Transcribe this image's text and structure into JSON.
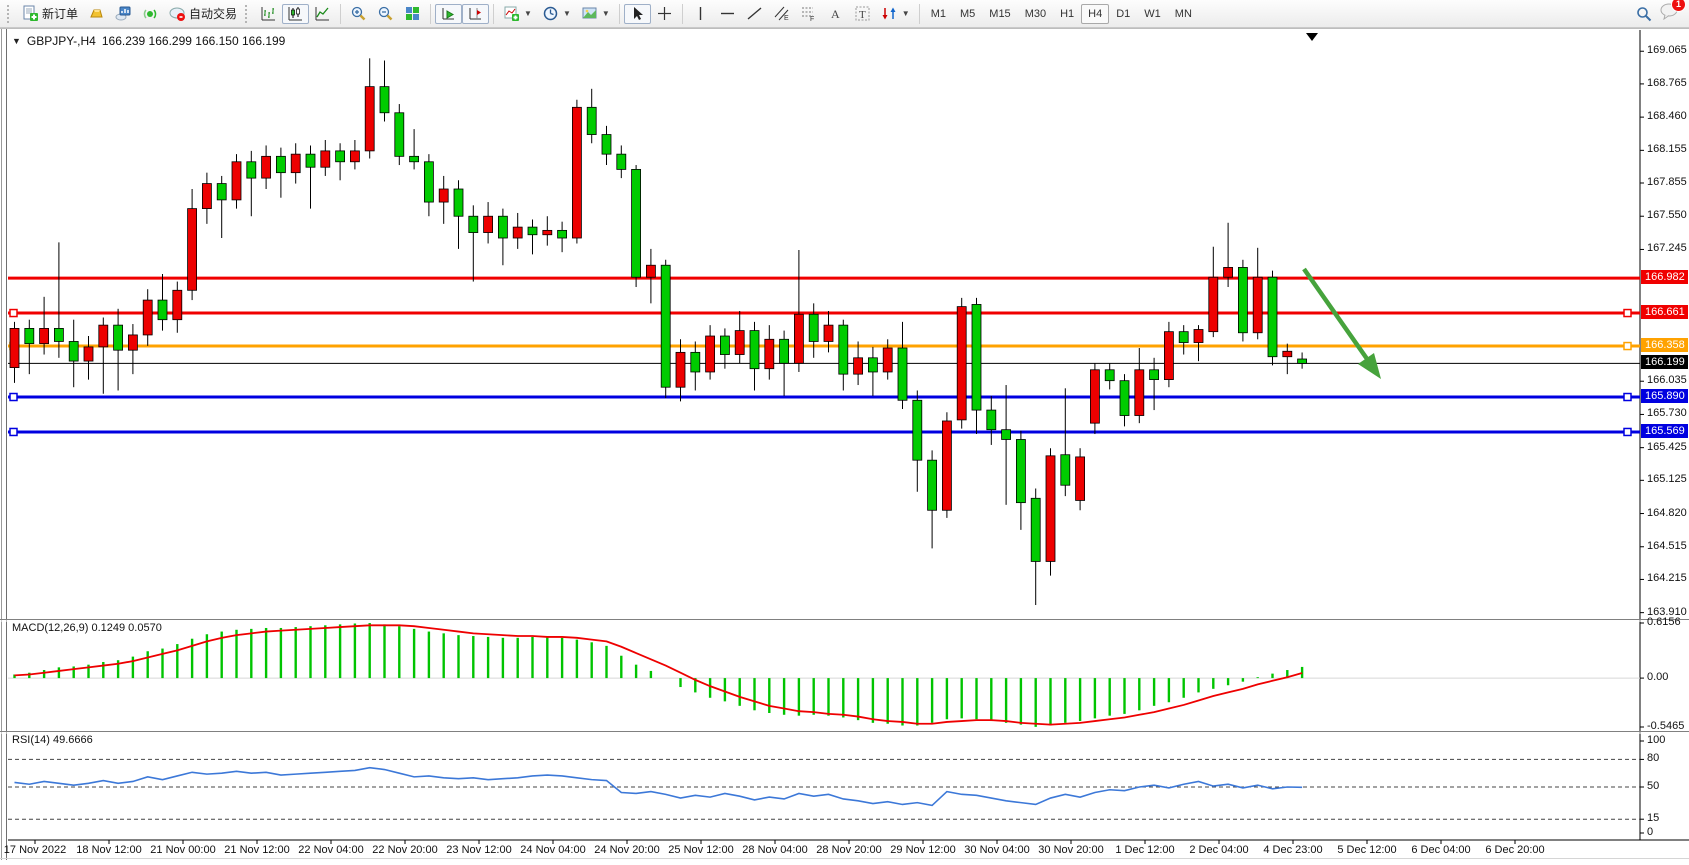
{
  "toolbar": {
    "new_order_label": "新订单",
    "auto_trading_label": "自动交易",
    "timeframes": [
      "M1",
      "M5",
      "M15",
      "M30",
      "H1",
      "H4",
      "D1",
      "W1",
      "MN"
    ],
    "active_timeframe": "H4",
    "badge_count": "1"
  },
  "title": {
    "symbol_period": "GBPJPY-,H4",
    "ohlc_text": "166.239 166.299 166.150 166.199"
  },
  "chart_data": {
    "type": "candlestick",
    "symbol": "GBPJPY-",
    "period": "H4",
    "current_bar": {
      "open": "166.239",
      "high": "166.299",
      "low": "166.150",
      "close": "166.199"
    },
    "ylim": [
      163.87,
      169.26
    ],
    "bull_color": "#ed0000",
    "bear_color": "#00cc00",
    "price_ticks": [
      169.065,
      168.765,
      168.46,
      168.155,
      167.855,
      167.55,
      167.245,
      166.035,
      165.73,
      165.425,
      165.125,
      164.82,
      164.515,
      164.215,
      163.91
    ],
    "time_labels": [
      "17 Nov 2022",
      "18 Nov 12:00",
      "21 Nov 00:00",
      "21 Nov 12:00",
      "22 Nov 04:00",
      "22 Nov 20:00",
      "23 Nov 12:00",
      "24 Nov 04:00",
      "24 Nov 20:00",
      "25 Nov 12:00",
      "28 Nov 04:00",
      "28 Nov 20:00",
      "29 Nov 12:00",
      "30 Nov 04:00",
      "30 Nov 20:00",
      "1 Dec 12:00",
      "2 Dec 04:00",
      "4 Dec 23:00",
      "5 Dec 12:00",
      "6 Dec 04:00",
      "6 Dec 20:00"
    ],
    "candles": [
      [
        166.16,
        166.58,
        166.02,
        166.52
      ],
      [
        166.52,
        166.6,
        166.1,
        166.38
      ],
      [
        166.38,
        166.81,
        166.28,
        166.52
      ],
      [
        166.52,
        167.31,
        166.25,
        166.4
      ],
      [
        166.4,
        166.6,
        165.98,
        166.22
      ],
      [
        166.22,
        166.45,
        166.05,
        166.35
      ],
      [
        166.35,
        166.62,
        165.92,
        166.55
      ],
      [
        166.55,
        166.7,
        165.95,
        166.32
      ],
      [
        166.32,
        166.56,
        166.1,
        166.46
      ],
      [
        166.46,
        166.88,
        166.36,
        166.78
      ],
      [
        166.78,
        167.02,
        166.5,
        166.6
      ],
      [
        166.6,
        166.95,
        166.48,
        166.87
      ],
      [
        166.87,
        167.8,
        166.78,
        167.62
      ],
      [
        167.62,
        167.95,
        167.48,
        167.85
      ],
      [
        167.85,
        167.92,
        167.35,
        167.7
      ],
      [
        167.7,
        168.12,
        167.62,
        168.05
      ],
      [
        168.05,
        168.15,
        167.55,
        167.9
      ],
      [
        167.9,
        168.2,
        167.8,
        168.1
      ],
      [
        168.1,
        168.18,
        167.72,
        167.95
      ],
      [
        167.95,
        168.22,
        167.85,
        168.12
      ],
      [
        168.12,
        168.2,
        167.62,
        168.0
      ],
      [
        168.0,
        168.25,
        167.92,
        168.15
      ],
      [
        168.15,
        168.22,
        167.88,
        168.05
      ],
      [
        168.05,
        168.25,
        167.98,
        168.15
      ],
      [
        168.15,
        169.0,
        168.08,
        168.74
      ],
      [
        168.74,
        168.98,
        168.42,
        168.5
      ],
      [
        168.5,
        168.58,
        168.02,
        168.1
      ],
      [
        168.1,
        168.35,
        167.98,
        168.05
      ],
      [
        168.05,
        168.12,
        167.55,
        167.68
      ],
      [
        167.68,
        167.92,
        167.48,
        167.8
      ],
      [
        167.8,
        167.88,
        167.25,
        167.55
      ],
      [
        167.55,
        167.65,
        166.95,
        167.4
      ],
      [
        167.4,
        167.68,
        167.3,
        167.55
      ],
      [
        167.55,
        167.62,
        167.1,
        167.35
      ],
      [
        167.35,
        167.58,
        167.25,
        167.45
      ],
      [
        167.45,
        167.52,
        167.2,
        167.38
      ],
      [
        167.38,
        167.55,
        167.28,
        167.42
      ],
      [
        167.42,
        167.5,
        167.22,
        167.35
      ],
      [
        167.35,
        168.62,
        167.3,
        168.55
      ],
      [
        168.55,
        168.72,
        168.22,
        168.3
      ],
      [
        168.3,
        168.38,
        168.02,
        168.12
      ],
      [
        168.12,
        168.2,
        167.9,
        167.98
      ],
      [
        167.98,
        168.02,
        166.9,
        166.99
      ],
      [
        166.99,
        167.25,
        166.75,
        167.1
      ],
      [
        167.1,
        167.15,
        165.88,
        165.98
      ],
      [
        165.98,
        166.42,
        165.85,
        166.3
      ],
      [
        166.3,
        166.4,
        165.95,
        166.12
      ],
      [
        166.12,
        166.55,
        166.05,
        166.45
      ],
      [
        166.45,
        166.52,
        166.15,
        166.28
      ],
      [
        166.28,
        166.68,
        166.2,
        166.5
      ],
      [
        166.5,
        166.58,
        165.95,
        166.15
      ],
      [
        166.15,
        166.55,
        166.05,
        166.42
      ],
      [
        166.42,
        166.5,
        165.9,
        166.2
      ],
      [
        166.2,
        167.24,
        166.12,
        166.65
      ],
      [
        166.65,
        166.75,
        166.25,
        166.4
      ],
      [
        166.4,
        166.68,
        166.3,
        166.55
      ],
      [
        166.55,
        166.6,
        165.95,
        166.1
      ],
      [
        166.1,
        166.4,
        166.0,
        166.25
      ],
      [
        166.25,
        166.35,
        165.9,
        166.12
      ],
      [
        166.12,
        166.42,
        166.05,
        166.34
      ],
      [
        166.34,
        166.58,
        165.78,
        165.86
      ],
      [
        165.86,
        165.95,
        165.02,
        165.31
      ],
      [
        165.31,
        165.4,
        164.5,
        164.85
      ],
      [
        164.85,
        165.75,
        164.78,
        165.67
      ],
      [
        165.68,
        166.8,
        165.6,
        166.72
      ],
      [
        166.74,
        166.8,
        165.55,
        165.77
      ],
      [
        165.77,
        165.9,
        165.45,
        165.59
      ],
      [
        165.59,
        166.0,
        164.9,
        165.5
      ],
      [
        165.5,
        165.58,
        164.67,
        164.92
      ],
      [
        164.96,
        165.05,
        163.98,
        164.38
      ],
      [
        164.38,
        165.42,
        164.25,
        165.35
      ],
      [
        165.36,
        165.97,
        164.98,
        165.08
      ],
      [
        164.94,
        165.42,
        164.85,
        165.34
      ],
      [
        165.65,
        166.2,
        165.55,
        166.14
      ],
      [
        166.14,
        166.2,
        165.96,
        166.04
      ],
      [
        166.04,
        166.1,
        165.62,
        165.72
      ],
      [
        165.72,
        166.34,
        165.65,
        166.14
      ],
      [
        166.14,
        166.25,
        165.77,
        166.05
      ],
      [
        166.05,
        166.58,
        165.98,
        166.49
      ],
      [
        166.49,
        166.55,
        166.28,
        166.39
      ],
      [
        166.39,
        166.55,
        166.22,
        166.51
      ],
      [
        166.49,
        167.27,
        166.44,
        166.99
      ],
      [
        166.99,
        167.49,
        166.9,
        167.08
      ],
      [
        167.08,
        167.15,
        166.4,
        166.48
      ],
      [
        166.48,
        167.26,
        166.42,
        166.99
      ],
      [
        166.99,
        167.05,
        166.18,
        166.26
      ],
      [
        166.26,
        166.38,
        166.1,
        166.31
      ],
      [
        166.239,
        166.299,
        166.15,
        166.199
      ]
    ],
    "levels": [
      {
        "price": 166.982,
        "label": "166.982",
        "color": "#f00000",
        "width": 3,
        "handles": false
      },
      {
        "price": 166.661,
        "label": "166.661",
        "color": "#f00000",
        "width": 3,
        "handles": true
      },
      {
        "price": 166.358,
        "label": "166.358",
        "color": "#ffa200",
        "width": 3,
        "handles": true
      },
      {
        "price": 166.199,
        "label": "166.199",
        "color": "#000000",
        "width": 1,
        "handles": false
      },
      {
        "price": 165.89,
        "label": "165.890",
        "color": "#0000e0",
        "width": 3,
        "handles": true
      },
      {
        "price": 165.569,
        "label": "165.569",
        "color": "#0000e0",
        "width": 3,
        "handles": true
      }
    ],
    "arrow": {
      "color": "#46a33c"
    },
    "macd": {
      "label": "MACD(12,26,9)",
      "value_main": "0.1249",
      "value_signal": "0.0570",
      "ticks": [
        "0.6156",
        "0.00",
        "-0.5465"
      ],
      "range": [
        -0.5465,
        0.6156
      ],
      "hist_color": "#00c400",
      "signal_color": "#ee0000",
      "histogram": [
        0.04,
        0.06,
        0.09,
        0.12,
        0.13,
        0.15,
        0.18,
        0.2,
        0.24,
        0.3,
        0.33,
        0.38,
        0.44,
        0.49,
        0.52,
        0.54,
        0.55,
        0.56,
        0.56,
        0.57,
        0.58,
        0.59,
        0.6,
        0.61,
        0.615,
        0.6,
        0.58,
        0.55,
        0.52,
        0.5,
        0.48,
        0.47,
        0.46,
        0.45,
        0.45,
        0.46,
        0.46,
        0.45,
        0.43,
        0.4,
        0.36,
        0.25,
        0.15,
        0.08,
        0.0,
        -0.1,
        -0.16,
        -0.22,
        -0.26,
        -0.31,
        -0.36,
        -0.39,
        -0.41,
        -0.42,
        -0.41,
        -0.42,
        -0.44,
        -0.47,
        -0.5,
        -0.51,
        -0.53,
        -0.53,
        -0.5,
        -0.46,
        -0.45,
        -0.46,
        -0.48,
        -0.5,
        -0.52,
        -0.545,
        -0.53,
        -0.5,
        -0.48,
        -0.45,
        -0.42,
        -0.4,
        -0.36,
        -0.31,
        -0.27,
        -0.22,
        -0.16,
        -0.12,
        -0.08,
        -0.04,
        0.01,
        0.05,
        0.09,
        0.1249
      ],
      "signal": [
        0.03,
        0.04,
        0.06,
        0.08,
        0.1,
        0.12,
        0.14,
        0.16,
        0.19,
        0.23,
        0.27,
        0.31,
        0.36,
        0.41,
        0.45,
        0.48,
        0.5,
        0.52,
        0.53,
        0.54,
        0.55,
        0.56,
        0.57,
        0.58,
        0.59,
        0.59,
        0.59,
        0.58,
        0.56,
        0.54,
        0.52,
        0.5,
        0.49,
        0.48,
        0.47,
        0.47,
        0.46,
        0.46,
        0.45,
        0.43,
        0.41,
        0.35,
        0.28,
        0.21,
        0.14,
        0.06,
        -0.02,
        -0.09,
        -0.15,
        -0.21,
        -0.26,
        -0.31,
        -0.34,
        -0.37,
        -0.38,
        -0.4,
        -0.41,
        -0.43,
        -0.46,
        -0.48,
        -0.49,
        -0.51,
        -0.51,
        -0.49,
        -0.48,
        -0.47,
        -0.47,
        -0.48,
        -0.5,
        -0.51,
        -0.52,
        -0.51,
        -0.5,
        -0.48,
        -0.46,
        -0.44,
        -0.41,
        -0.38,
        -0.34,
        -0.3,
        -0.25,
        -0.2,
        -0.16,
        -0.12,
        -0.07,
        -0.03,
        0.01,
        0.057
      ]
    },
    "rsi": {
      "label": "RSI(14)",
      "value": "49.6666",
      "ticks": [
        100,
        80,
        50,
        15,
        0
      ],
      "levels": [
        80,
        50,
        15
      ],
      "range": [
        0,
        100
      ],
      "color": "#3c78d8",
      "values": [
        55,
        53,
        56,
        54,
        52,
        54,
        57,
        54,
        56,
        61,
        58,
        62,
        66,
        64,
        65,
        67,
        65,
        66,
        63,
        64,
        65,
        66,
        67,
        68,
        71,
        69,
        65,
        61,
        62,
        60,
        59,
        60,
        58,
        59,
        60,
        62,
        63,
        62,
        60,
        58,
        57,
        44,
        43,
        45,
        42,
        38,
        41,
        39,
        43,
        40,
        36,
        39,
        37,
        43,
        40,
        42,
        37,
        35,
        32,
        34,
        31,
        33,
        30,
        45,
        42,
        41,
        38,
        35,
        33,
        31,
        38,
        42,
        39,
        44,
        47,
        46,
        50,
        52,
        49,
        53,
        56,
        51,
        53,
        49,
        52,
        48,
        50,
        49.67
      ]
    }
  }
}
